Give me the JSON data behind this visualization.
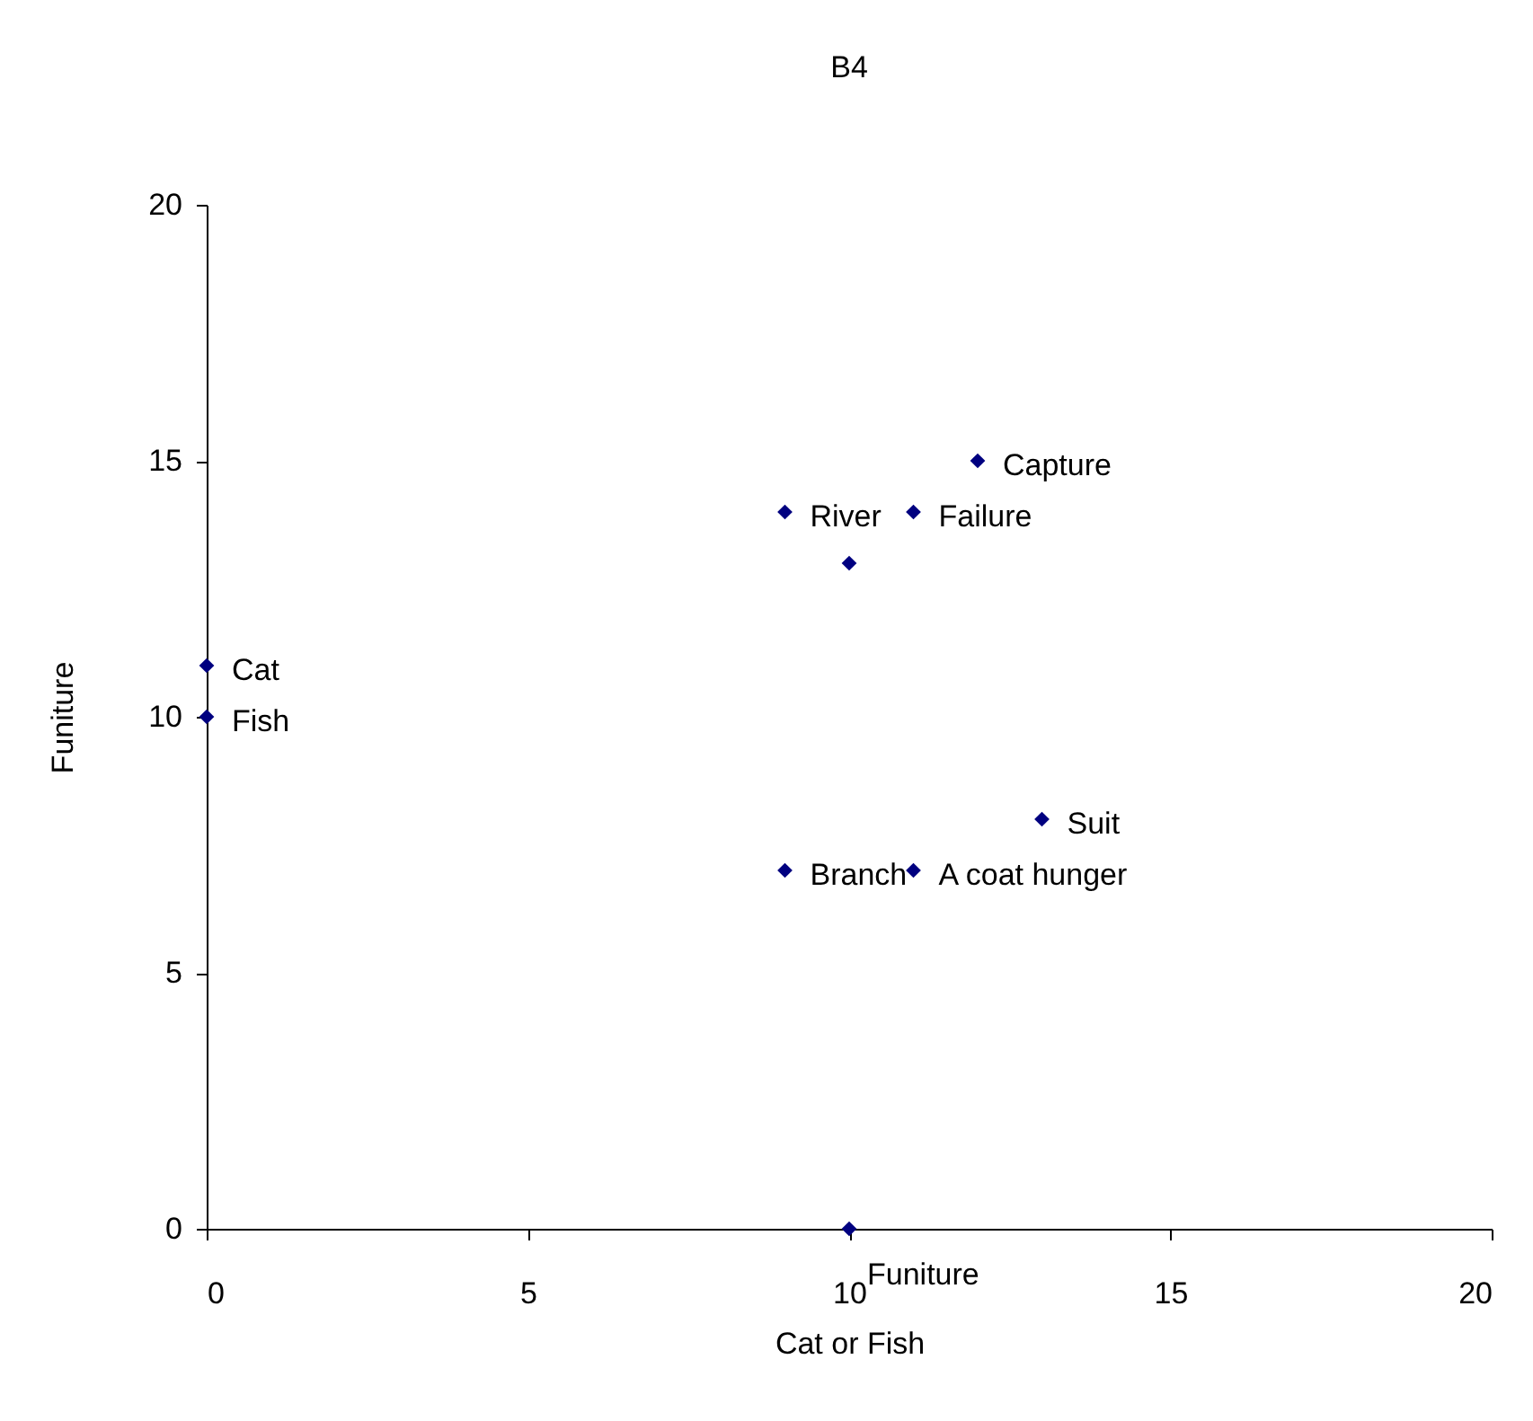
{
  "chart_data": {
    "type": "scatter",
    "title": "B4",
    "xlabel": "Cat or Fish",
    "ylabel": "Funiture",
    "x": [
      0,
      0,
      9,
      11,
      10,
      12,
      13,
      9,
      11,
      10
    ],
    "series": [
      {
        "color": "#000080",
        "values": [
          11,
          10,
          14,
          14,
          13,
          15,
          8,
          7,
          7,
          0
        ]
      }
    ],
    "xlim": [
      0,
      20
    ],
    "xticks": [
      0,
      5,
      10,
      15,
      20
    ],
    "ylim": [
      0,
      20
    ],
    "yticks": [
      0,
      5,
      10,
      15,
      20
    ],
    "grid": false,
    "marker": "diamond",
    "annotations": [
      {
        "text": "Cat",
        "x": 0,
        "y": 11
      },
      {
        "text": "Fish",
        "x": 0,
        "y": 10
      },
      {
        "text": "River",
        "x": 9,
        "y": 14
      },
      {
        "text": "Failure",
        "x": 11,
        "y": 14
      },
      {
        "text": "Capture",
        "x": 12,
        "y": 15
      },
      {
        "text": "Suit",
        "x": 13,
        "y": 8
      },
      {
        "text": "Branch",
        "x": 9,
        "y": 7
      },
      {
        "text": "A coat hunger",
        "x": 11,
        "y": 7
      },
      {
        "text": "Funiture",
        "x": 10,
        "y": 0
      }
    ]
  }
}
